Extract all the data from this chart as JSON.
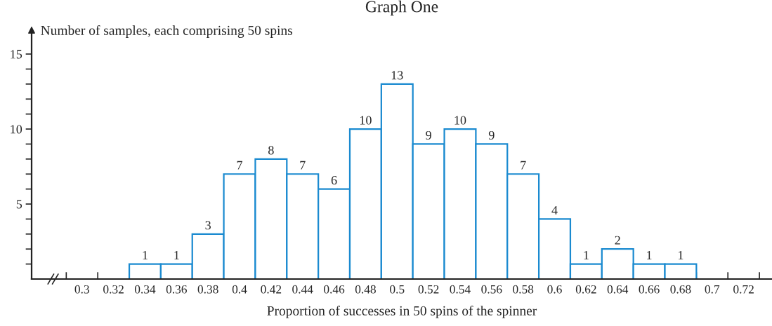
{
  "chart_data": {
    "type": "histogram",
    "title": "Graph One",
    "xlabel": "Proportion of successes in 50 spins of the spinner",
    "ylabel": "Number of samples, each comprising 50 spins",
    "bins": [
      0.33,
      0.35,
      0.37,
      0.39,
      0.41,
      0.43,
      0.45,
      0.47,
      0.49,
      0.51,
      0.53,
      0.55,
      0.57,
      0.59,
      0.61,
      0.63,
      0.65,
      0.67,
      0.69
    ],
    "values": [
      1,
      1,
      3,
      7,
      8,
      7,
      6,
      10,
      13,
      9,
      10,
      9,
      7,
      4,
      1,
      2,
      1,
      1
    ],
    "color": "#1a8ad0",
    "data_labels": true,
    "xlim": [
      0.268,
      0.738
    ],
    "ylim": [
      0,
      16.5
    ],
    "xticks": [
      {
        "value": 0.29,
        "label": null
      },
      0.3,
      {
        "value": 0.31,
        "label": null
      },
      0.32,
      {
        "value": 0.33,
        "label": null
      },
      0.34,
      {
        "value": 0.35,
        "label": null
      },
      0.36,
      {
        "value": 0.37,
        "label": null
      },
      0.38,
      {
        "value": 0.39,
        "label": null
      },
      0.4,
      {
        "value": 0.41,
        "label": null
      },
      0.42,
      {
        "value": 0.43,
        "label": null
      },
      0.44,
      {
        "value": 0.45,
        "label": null
      },
      0.46,
      {
        "value": 0.47,
        "label": null
      },
      0.48,
      {
        "value": 0.49,
        "label": null
      },
      0.5,
      {
        "value": 0.51,
        "label": null
      },
      0.52,
      {
        "value": 0.53,
        "label": null
      },
      0.54,
      {
        "value": 0.55,
        "label": null
      },
      0.56,
      {
        "value": 0.57,
        "label": null
      },
      0.58,
      {
        "value": 0.59,
        "label": null
      },
      0.6,
      {
        "value": 0.61,
        "label": null
      },
      0.62,
      {
        "value": 0.63,
        "label": null
      },
      0.64,
      {
        "value": 0.65,
        "label": null
      },
      0.66,
      {
        "value": 0.67,
        "label": null
      },
      0.68,
      {
        "value": 0.69,
        "label": null
      },
      0.7,
      {
        "value": 0.71,
        "label": null
      },
      0.72,
      {
        "value": 0.73,
        "label": null
      }
    ],
    "yticks": [
      {
        "value": 1,
        "label": null
      },
      {
        "value": 2,
        "label": null
      },
      {
        "value": 3,
        "label": null
      },
      {
        "value": 4,
        "label": null
      },
      5,
      {
        "value": 6,
        "label": null
      },
      {
        "value": 7,
        "label": null
      },
      {
        "value": 8,
        "label": null
      },
      {
        "value": 9,
        "label": null
      },
      10,
      {
        "value": 11,
        "label": null
      },
      {
        "value": 12,
        "label": null
      },
      {
        "value": 13,
        "label": null
      },
      {
        "value": 14,
        "label": null
      },
      15
    ],
    "grid": false
  }
}
